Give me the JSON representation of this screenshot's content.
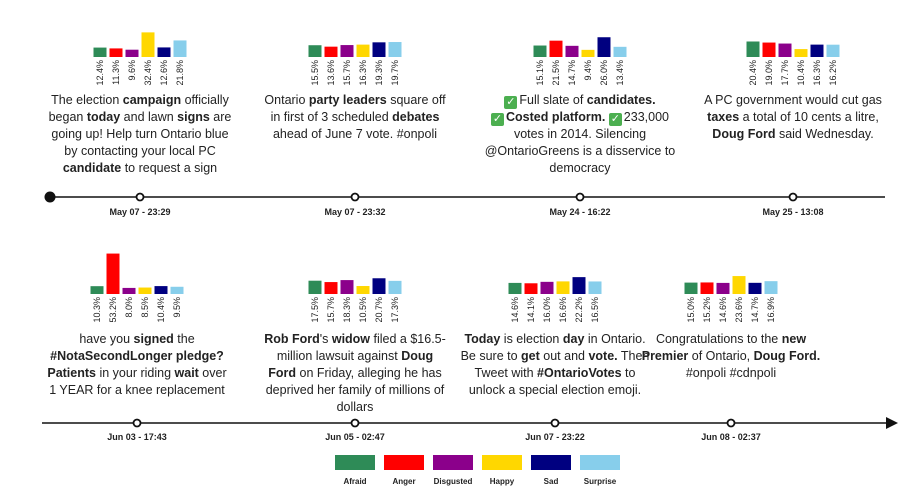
{
  "colors": {
    "Afraid": "#2e8b57",
    "Anger": "#ff0000",
    "Disgusted": "#8b008b",
    "Happy": "#ffd700",
    "Sad": "#000080",
    "Surprise": "#87ceeb"
  },
  "legend": [
    "Afraid",
    "Anger",
    "Disgusted",
    "Happy",
    "Sad",
    "Surprise"
  ],
  "chart_data": {
    "type": "bar",
    "categories": [
      "Afraid",
      "Anger",
      "Disgusted",
      "Happy",
      "Sad",
      "Surprise"
    ],
    "events": [
      {
        "time": "May 07 - 23:29",
        "values": [
          12.4,
          11.3,
          9.6,
          32.4,
          12.6,
          21.8
        ],
        "labels": [
          "12.4%",
          "11.3%",
          "9.6%",
          "32.4%",
          "12.6%",
          "21.8%"
        ]
      },
      {
        "time": "May 07 - 23:32",
        "values": [
          15.5,
          13.6,
          15.7,
          16.3,
          19.3,
          19.7
        ],
        "labels": [
          "15.5%",
          "13.6%",
          "15.7%",
          "16.3%",
          "19.3%",
          "19.7%"
        ]
      },
      {
        "time": "May 24 - 16:22",
        "values": [
          15.1,
          21.5,
          14.7,
          9.4,
          26.0,
          13.4
        ],
        "labels": [
          "15.1%",
          "21.5%",
          "14.7%",
          "9.4%",
          "26.0%",
          "13.4%"
        ]
      },
      {
        "time": "May 25 - 13:08",
        "values": [
          20.4,
          19.0,
          17.7,
          10.4,
          16.3,
          16.2
        ],
        "labels": [
          "20.4%",
          "19.0%",
          "17.7%",
          "10.4%",
          "16.3%",
          "16.2%"
        ]
      },
      {
        "time": "Jun 03 - 17:43",
        "values": [
          10.3,
          53.2,
          8.0,
          8.5,
          10.4,
          9.5
        ],
        "labels": [
          "10.3%",
          "53.2%",
          "8.0%",
          "8.5%",
          "10.4%",
          "9.5%"
        ]
      },
      {
        "time": "Jun 05 - 02:47",
        "values": [
          17.5,
          15.7,
          18.3,
          10.5,
          20.7,
          17.3
        ],
        "labels": [
          "17.5%",
          "15.7%",
          "18.3%",
          "10.5%",
          "20.7%",
          "17.3%"
        ]
      },
      {
        "time": "Jun 07 - 23:22",
        "values": [
          14.6,
          14.1,
          16.0,
          16.6,
          22.2,
          16.5
        ],
        "labels": [
          "14.6%",
          "14.1%",
          "16.0%",
          "16.6%",
          "22.2%",
          "16.5%"
        ]
      },
      {
        "time": "Jun 08 - 02:37",
        "values": [
          15.0,
          15.2,
          14.6,
          23.6,
          14.7,
          16.9
        ],
        "labels": [
          "15.0%",
          "15.2%",
          "14.6%",
          "23.6%",
          "14.7%",
          "16.9%"
        ]
      }
    ]
  },
  "tweets": [
    [
      [
        [
          "The election ",
          false
        ],
        [
          "campaign",
          true
        ],
        [
          " officially",
          false
        ]
      ],
      [
        [
          "began ",
          false
        ],
        [
          "today",
          true
        ],
        [
          " and lawn ",
          false
        ],
        [
          "signs",
          true
        ],
        [
          " are",
          false
        ]
      ],
      [
        [
          "going up! Help turn Ontario blue",
          false
        ]
      ],
      [
        [
          "by contacting your local PC",
          false
        ]
      ],
      [
        [
          "candidate",
          true
        ],
        [
          " to request a sign",
          false
        ]
      ]
    ],
    [
      [
        [
          "Ontario ",
          false
        ],
        [
          "party leaders",
          true
        ],
        [
          " square off",
          false
        ]
      ],
      [
        [
          "in first of 3 scheduled ",
          false
        ],
        [
          "debates",
          true
        ]
      ],
      [
        [
          "ahead of June 7 vote. #onpoli",
          false
        ]
      ]
    ],
    [
      [
        [
          "✓",
          "check"
        ],
        [
          "Full slate of ",
          false
        ],
        [
          "candidates.",
          true
        ]
      ],
      [
        [
          "✓",
          "check"
        ],
        [
          "Costed platform.",
          true
        ],
        [
          " ",
          false
        ],
        [
          "✓",
          "check"
        ],
        [
          "233,000",
          false
        ]
      ],
      [
        [
          "votes in 2014. Silencing",
          false
        ]
      ],
      [
        [
          "@OntarioGreens is a disservice to",
          false
        ]
      ],
      [
        [
          "democracy",
          false
        ]
      ]
    ],
    [
      [
        [
          "A PC government would cut gas",
          false
        ]
      ],
      [
        [
          "taxes",
          true
        ],
        [
          " a total of 10 cents a litre,",
          false
        ]
      ],
      [
        [
          "Doug Ford",
          true
        ],
        [
          " said Wednesday.",
          false
        ]
      ]
    ],
    [
      [
        [
          "have you ",
          false
        ],
        [
          "signed",
          true
        ],
        [
          " the",
          false
        ]
      ],
      [
        [
          "#NotaSecondLonger pledge?",
          true
        ]
      ],
      [
        [
          "Patients",
          true
        ],
        [
          " in your riding ",
          false
        ],
        [
          "wait",
          true
        ],
        [
          " over",
          false
        ]
      ],
      [
        [
          "1 YEAR for a knee replacement",
          false
        ]
      ]
    ],
    [
      [
        [
          "Rob Ford",
          true
        ],
        [
          "'s ",
          false
        ],
        [
          "widow",
          true
        ],
        [
          " filed a $16.5-",
          false
        ]
      ],
      [
        [
          "million lawsuit against ",
          false
        ],
        [
          "Doug",
          true
        ]
      ],
      [
        [
          "Ford",
          true
        ],
        [
          " on Friday, alleging he has",
          false
        ]
      ],
      [
        [
          "deprived her family of millions of",
          false
        ]
      ],
      [
        [
          "dollars",
          false
        ]
      ]
    ],
    [
      [
        [
          "Today",
          true
        ],
        [
          " is election ",
          false
        ],
        [
          "day",
          true
        ],
        [
          " in Ontario.",
          false
        ]
      ],
      [
        [
          "Be sure to ",
          false
        ],
        [
          "get",
          true
        ],
        [
          " out and ",
          false
        ],
        [
          "vote.",
          true
        ],
        [
          " Then",
          false
        ]
      ],
      [
        [
          "Tweet with ",
          false
        ],
        [
          "#OntarioVotes",
          true
        ],
        [
          " to",
          false
        ]
      ],
      [
        [
          "unlock a special election emoji.",
          false
        ]
      ]
    ],
    [
      [
        [
          "Congratulations to the ",
          false
        ],
        [
          "new",
          true
        ]
      ],
      [
        [
          "Premier",
          true
        ],
        [
          " of Ontario, ",
          false
        ],
        [
          "Doug Ford.",
          true
        ]
      ],
      [
        [
          "#onpoli #cdnpoli",
          false
        ]
      ]
    ]
  ]
}
